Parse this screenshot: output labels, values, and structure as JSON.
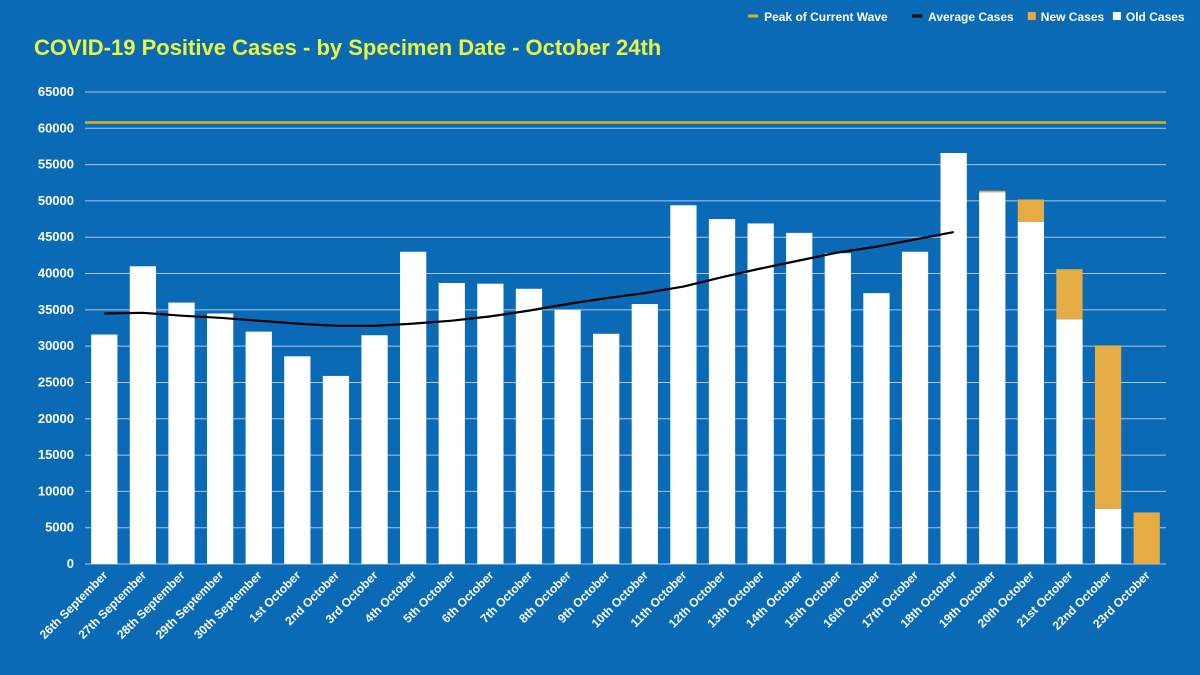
{
  "colors": {
    "background": "#0a6ab5",
    "old": "#ffffff",
    "new": "#e5ab45",
    "average": "#000000",
    "peak": "#d9b21c",
    "title": "#e9f542",
    "grid": "#a9c9ea"
  },
  "chart_data": {
    "type": "bar",
    "stacked": true,
    "title": "COVID-19 Positive Cases - by Specimen Date - October 24th",
    "xlabel": "",
    "ylabel": "",
    "ylim": [
      0,
      65000
    ],
    "yticks": [
      0,
      5000,
      10000,
      15000,
      20000,
      25000,
      30000,
      35000,
      40000,
      45000,
      50000,
      55000,
      60000,
      65000
    ],
    "grid": true,
    "legend_position": "top-right",
    "categories": [
      "26th September",
      "27th September",
      "28th September",
      "29th September",
      "30th September",
      "1st October",
      "2nd October",
      "3rd October",
      "4th October",
      "5th October",
      "6th October",
      "7th October",
      "8th October",
      "9th October",
      "10th October",
      "11th October",
      "12th October",
      "13th October",
      "14th October",
      "15th October",
      "16th October",
      "17th October",
      "18th October",
      "19th October",
      "20th October",
      "21st October",
      "22nd October",
      "23rd October"
    ],
    "series": [
      {
        "name": "Old Cases",
        "type": "bar",
        "values": [
          31600,
          41000,
          36000,
          34500,
          32000,
          28600,
          25900,
          31500,
          43000,
          38700,
          38600,
          37900,
          35000,
          31700,
          35800,
          49400,
          47500,
          46900,
          45600,
          42800,
          37300,
          43000,
          56600,
          51200,
          47100,
          33700,
          7600,
          0
        ]
      },
      {
        "name": "New Cases",
        "type": "bar",
        "values": [
          0,
          0,
          0,
          0,
          0,
          0,
          0,
          0,
          0,
          0,
          0,
          0,
          0,
          0,
          0,
          0,
          0,
          0,
          0,
          0,
          0,
          0,
          0,
          200,
          3100,
          6900,
          22500,
          7100
        ]
      },
      {
        "name": "Average Cases",
        "type": "line",
        "values": [
          34500,
          34600,
          34200,
          33900,
          33500,
          33100,
          32800,
          32800,
          33100,
          33500,
          34100,
          34900,
          35800,
          36600,
          37300,
          38200,
          39500,
          40700,
          41800,
          42900,
          43700,
          44700,
          45700,
          null,
          null,
          null,
          null,
          null
        ]
      },
      {
        "name": "Peak of Current Wave",
        "type": "hline",
        "value": 60800
      }
    ]
  }
}
